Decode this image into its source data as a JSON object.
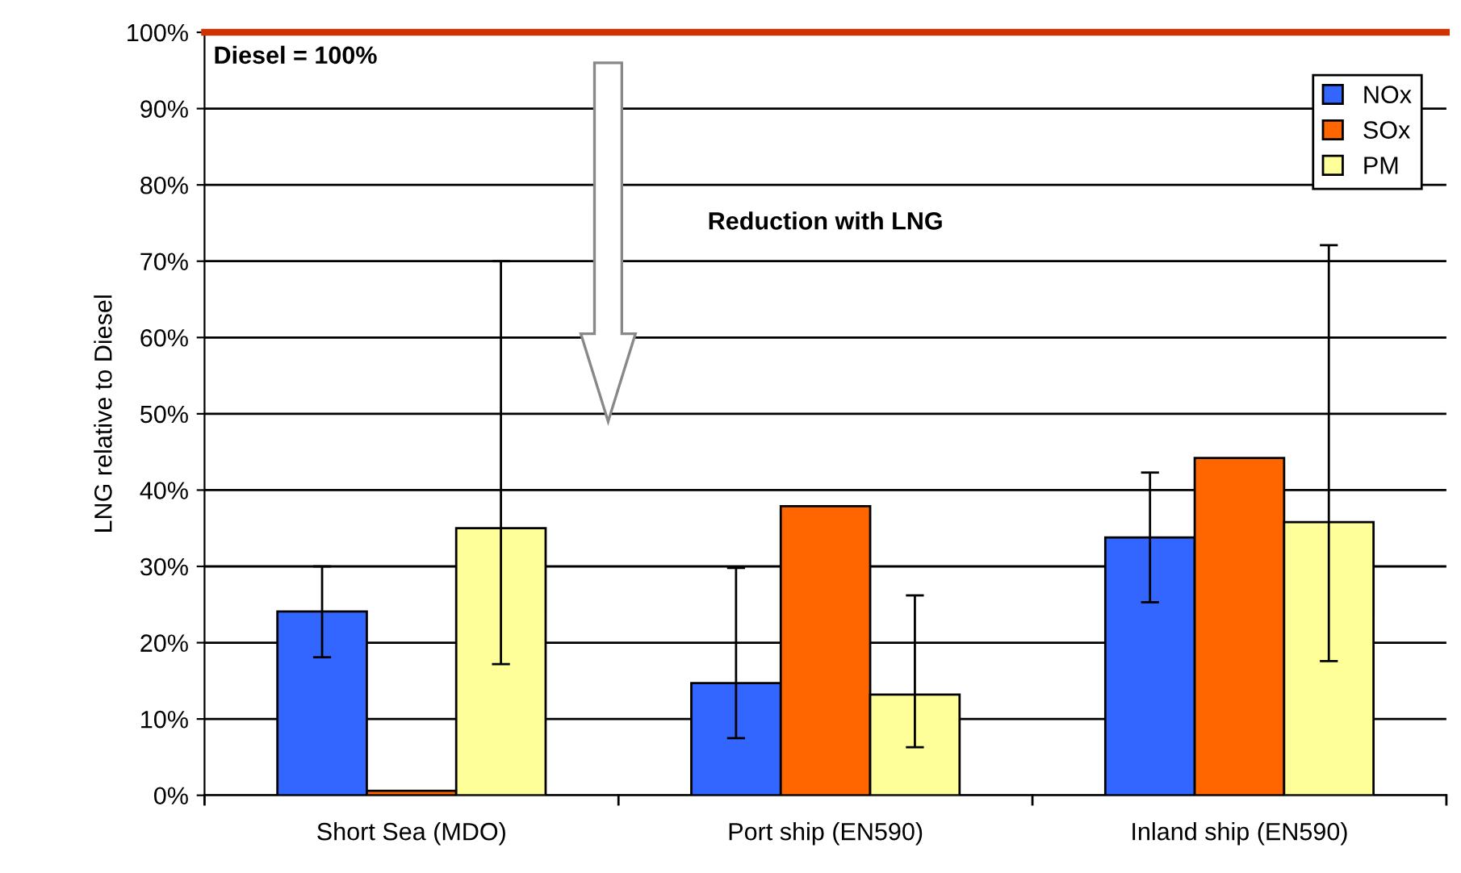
{
  "chart_data": {
    "type": "bar",
    "ylabel": "LNG relative to Diesel",
    "categories": [
      "Short Sea (MDO)",
      "Port ship (EN590)",
      "Inland ship (EN590)"
    ],
    "series": [
      {
        "name": "NOx",
        "color": "#3366ff",
        "values": [
          24.1,
          14.7,
          33.8
        ],
        "errors": [
          [
            18.1,
            30.0
          ],
          [
            7.5,
            29.8
          ],
          [
            25.3,
            42.3
          ]
        ]
      },
      {
        "name": "SOx",
        "color": "#ff6600",
        "values": [
          0.6,
          37.9,
          44.2
        ]
      },
      {
        "name": "PM",
        "color": "#ffff99",
        "values": [
          35.0,
          13.2,
          35.8
        ],
        "errors": [
          [
            17.2,
            70.0
          ],
          [
            6.3,
            26.2
          ],
          [
            17.6,
            72.1
          ]
        ]
      }
    ],
    "ylim": [
      0,
      100
    ],
    "yticks": [
      {
        "value": 0,
        "label": "0%"
      },
      {
        "value": 10,
        "label": "10%"
      },
      {
        "value": 20,
        "label": "20%"
      },
      {
        "value": 30,
        "label": "30%"
      },
      {
        "value": 40,
        "label": "40%"
      },
      {
        "value": 50,
        "label": "50%"
      },
      {
        "value": 60,
        "label": "60%"
      },
      {
        "value": 70,
        "label": "70%"
      },
      {
        "value": 80,
        "label": "80%"
      },
      {
        "value": 90,
        "label": "90%"
      },
      {
        "value": 100,
        "label": "100%"
      }
    ],
    "grid": "y",
    "legend": "top right",
    "ref_lines": [
      {
        "axis": "y",
        "value": 100,
        "label": "Diesel = 100%",
        "color": "#cc3300"
      }
    ],
    "annotations": [
      "Reduction with LNG"
    ]
  }
}
